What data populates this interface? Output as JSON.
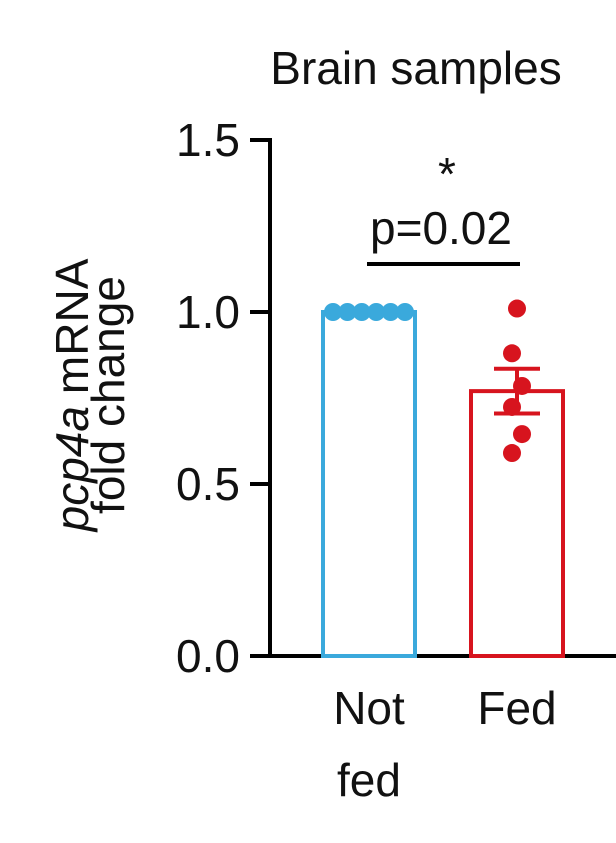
{
  "chart_data": {
    "type": "bar-scatter",
    "title": "Brain samples",
    "ylabel": [
      "pcp4a",
      "mRNA",
      "fold change"
    ],
    "categories": [
      "Not fed",
      "Fed"
    ],
    "values": [
      1.0,
      0.77
    ],
    "errors": [
      0,
      0.065
    ],
    "points": [
      [
        1.0,
        1.0,
        1.0,
        1.0,
        1.0,
        1.0
      ],
      [
        1.01,
        0.88,
        0.785,
        0.724,
        0.645,
        0.59
      ]
    ],
    "colors": [
      "#3aa9dc",
      "#d7141e"
    ],
    "ylim": [
      0,
      1.5
    ],
    "yticks": [
      {
        "value": 0,
        "label": "0.0"
      },
      0.5,
      {
        "value": 1,
        "label": "1.0"
      },
      1.5
    ],
    "annotations": [
      "*",
      "p=0.02"
    ]
  }
}
